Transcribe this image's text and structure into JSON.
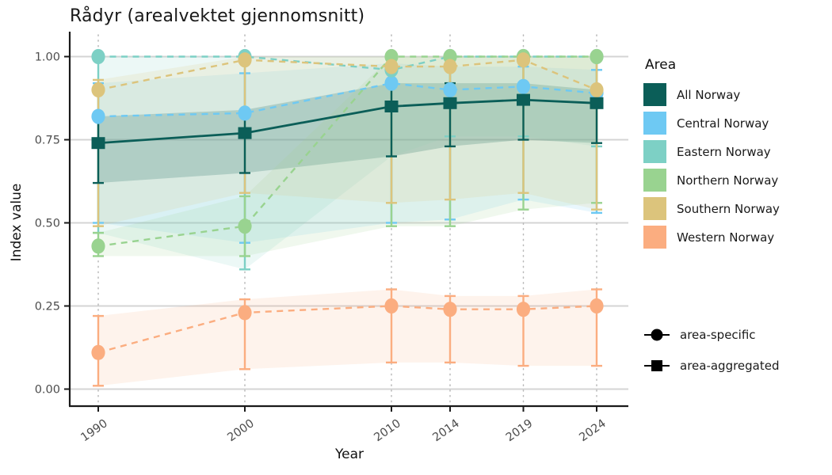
{
  "chart_data": {
    "type": "line",
    "title": "Rådyr (arealvektet gjennomsnitt)",
    "xlabel": "Year",
    "ylabel": "Index value",
    "x": [
      1990,
      2000,
      2010,
      2014,
      2019,
      2024
    ],
    "x_tick_labels": [
      "1990",
      "2000",
      "2010",
      "2014",
      "2019",
      "2024"
    ],
    "y_ticks": [
      0,
      0.25,
      0.5,
      0.75,
      1
    ],
    "y_tick_labels": [
      "0.00",
      "0.25",
      "0.50",
      "0.75",
      "1.00"
    ],
    "ylim": [
      0,
      1
    ],
    "xlim": [
      1988,
      2026
    ],
    "grid": {
      "horizontal": "solid",
      "vertical": "dotted"
    },
    "legend_title": "Area",
    "legend_position": "right",
    "marker_legend": [
      {
        "shape": "circle",
        "label": "area-specific"
      },
      {
        "shape": "square",
        "label": "area-aggregated"
      }
    ],
    "series": [
      {
        "name": "All Norway",
        "color": "#0b5e58",
        "marker": "square",
        "line_style": "solid",
        "role": "area-aggregated",
        "values": [
          0.74,
          0.77,
          0.85,
          0.86,
          0.87,
          0.86
        ],
        "ci_low": [
          0.62,
          0.65,
          0.7,
          0.73,
          0.75,
          0.74
        ],
        "ci_high": [
          0.82,
          0.84,
          0.92,
          0.92,
          0.92,
          0.9
        ]
      },
      {
        "name": "Central Norway",
        "color": "#6ec9f3",
        "marker": "circle",
        "line_style": "dashed",
        "role": "area-specific",
        "values": [
          0.82,
          0.83,
          0.92,
          0.9,
          0.91,
          0.89
        ],
        "ci_low": [
          0.5,
          0.44,
          0.5,
          0.51,
          0.57,
          0.53
        ],
        "ci_high": [
          0.92,
          0.95,
          0.98,
          0.97,
          0.97,
          0.96
        ]
      },
      {
        "name": "Eastern Norway",
        "color": "#7dd0c5",
        "marker": "circle",
        "line_style": "dashed",
        "role": "area-specific",
        "values": [
          1.0,
          1.0,
          0.96,
          1.0,
          1.0,
          1.0
        ],
        "ci_low": [
          0.47,
          0.36,
          0.7,
          0.76,
          0.76,
          0.73
        ],
        "ci_high": [
          1.0,
          1.0,
          1.0,
          1.0,
          1.0,
          1.0
        ]
      },
      {
        "name": "Northern Norway",
        "color": "#99d390",
        "marker": "circle",
        "line_style": "dashed",
        "role": "area-specific",
        "values": [
          0.43,
          0.49,
          1.0,
          1.0,
          1.0,
          1.0
        ],
        "ci_low": [
          0.4,
          0.4,
          0.49,
          0.49,
          0.54,
          0.56
        ],
        "ci_high": [
          0.47,
          0.58,
          1.0,
          1.0,
          1.0,
          1.0
        ]
      },
      {
        "name": "Southern Norway",
        "color": "#dcc47c",
        "marker": "circle",
        "line_style": "dashed",
        "role": "area-specific",
        "values": [
          0.9,
          0.99,
          0.97,
          0.97,
          0.99,
          0.9
        ],
        "ci_low": [
          0.49,
          0.59,
          0.56,
          0.57,
          0.59,
          0.54
        ],
        "ci_high": [
          0.93,
          1.0,
          1.0,
          1.0,
          1.0,
          1.0
        ]
      },
      {
        "name": "Western Norway",
        "color": "#fbad80",
        "marker": "circle",
        "line_style": "dashed",
        "role": "area-specific",
        "values": [
          0.11,
          0.23,
          0.25,
          0.24,
          0.24,
          0.25
        ],
        "ci_low": [
          0.01,
          0.06,
          0.08,
          0.08,
          0.07,
          0.07
        ],
        "ci_high": [
          0.22,
          0.27,
          0.3,
          0.28,
          0.28,
          0.3
        ]
      }
    ],
    "style": {
      "grid_color": "#d4d4d4",
      "dotted_grid_color": "#b9b9b9",
      "axis_color": "#1a1a1a",
      "tick_label_color": "#4d4d4d",
      "band_opacity_aggregated": 0.27,
      "band_opacity_specific": 0.15
    }
  }
}
